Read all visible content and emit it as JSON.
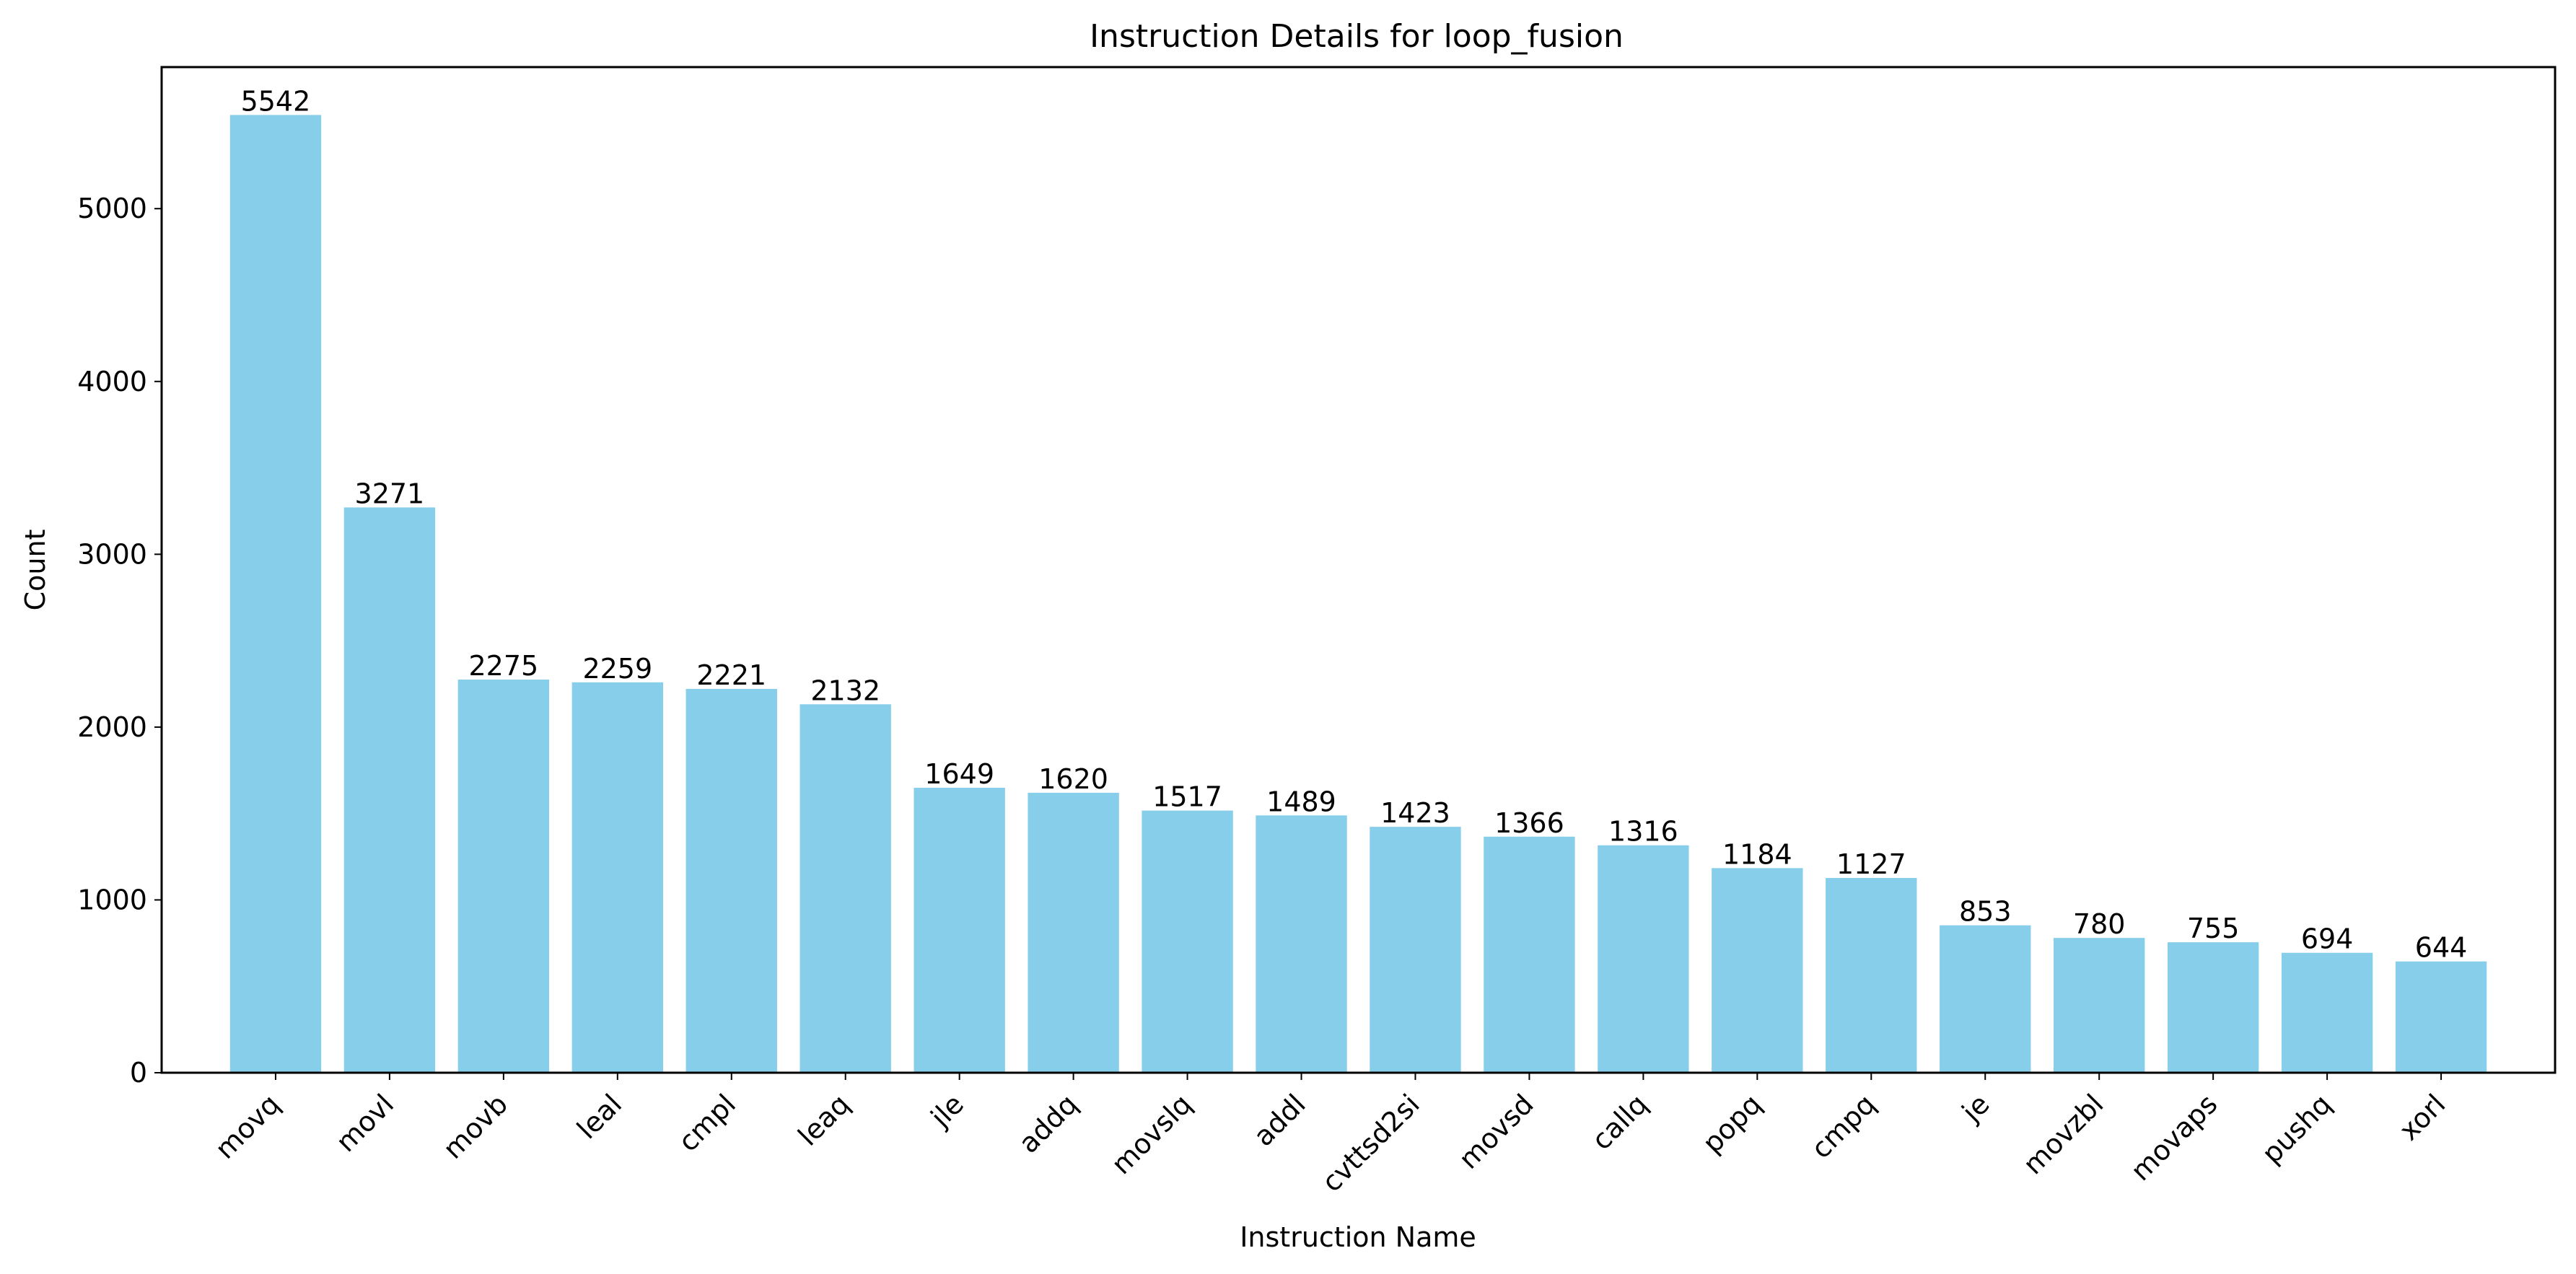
{
  "chart_data": {
    "type": "bar",
    "title": "Instruction Details for loop_fusion",
    "xlabel": "Instruction Name",
    "ylabel": "Count",
    "categories": [
      "movq",
      "movl",
      "movb",
      "leal",
      "cmpl",
      "leaq",
      "jle",
      "addq",
      "movslq",
      "addl",
      "cvttsd2si",
      "movsd",
      "callq",
      "popq",
      "cmpq",
      "je",
      "movzbl",
      "movaps",
      "pushq",
      "xorl"
    ],
    "values": [
      5542,
      3271,
      2275,
      2259,
      2221,
      2132,
      1649,
      1620,
      1517,
      1489,
      1423,
      1366,
      1316,
      1184,
      1127,
      853,
      780,
      755,
      694,
      644
    ],
    "ylim": [
      0,
      5819.1
    ],
    "yticks": [
      0,
      1000,
      2000,
      3000,
      4000,
      5000
    ],
    "bar_color": "#87ceeb",
    "grid": false,
    "legend": false,
    "data_labels": true,
    "xtick_rotation": 45
  }
}
